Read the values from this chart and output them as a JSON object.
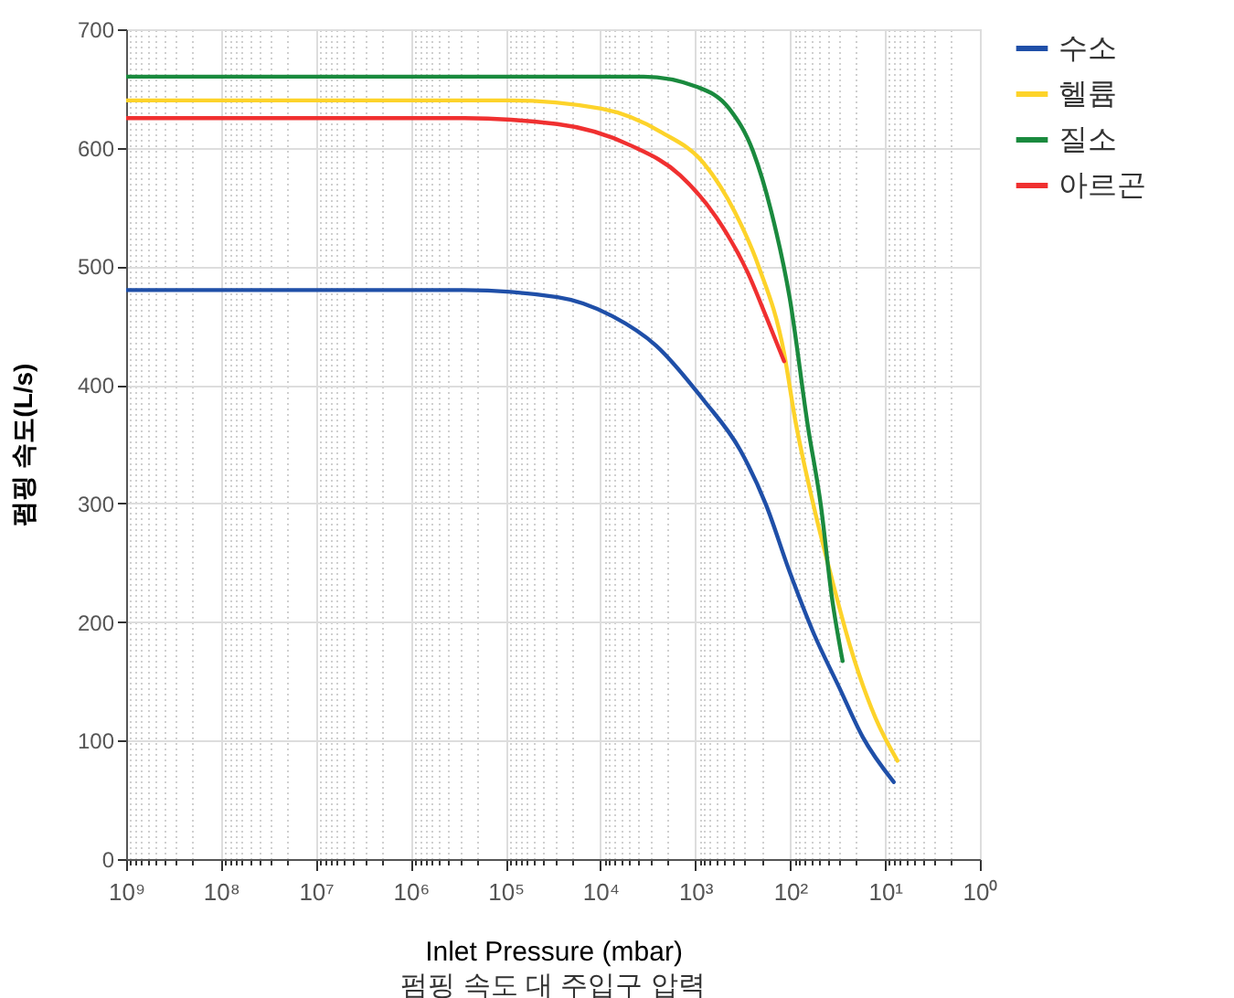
{
  "chart_data": {
    "type": "line",
    "title": "펌핑 속도 대 주입구 압력",
    "xlabel": "Inlet Pressure (mbar)",
    "ylabel": "펌핑 속도(L/s)",
    "log": "x",
    "grid": true,
    "legend": "top right",
    "marker": "none",
    "line_style": "solid",
    "xlim": [
      1000000000,
      1
    ],
    "ylim": [
      0,
      700
    ],
    "yticks": [
      0,
      100,
      200,
      300,
      400,
      500,
      600,
      700
    ],
    "xticks": [
      {
        "value": 1000000000,
        "label": "10⁹"
      },
      {
        "value": 100000000,
        "label": "10⁸"
      },
      {
        "value": 10000000,
        "label": "10⁷"
      },
      {
        "value": 1000000,
        "label": "10⁶"
      },
      {
        "value": 100000,
        "label": "10⁵"
      },
      {
        "value": 10000,
        "label": "10⁴"
      },
      {
        "value": 1000,
        "label": "10³"
      },
      {
        "value": 100,
        "label": "10²"
      },
      {
        "value": 10,
        "label": "10¹"
      },
      {
        "value": 1,
        "label": "10⁰"
      },
      {
        "value": 900000000,
        "label": null
      },
      {
        "value": 800000000,
        "label": null
      },
      {
        "value": 700000000,
        "label": null
      },
      {
        "value": 600000000,
        "label": null
      },
      {
        "value": 500000000,
        "label": null
      },
      {
        "value": 400000000,
        "label": null
      },
      {
        "value": 300000000,
        "label": null
      },
      {
        "value": 200000000,
        "label": null
      },
      {
        "value": 90000000,
        "label": null
      },
      {
        "value": 80000000,
        "label": null
      },
      {
        "value": 70000000,
        "label": null
      },
      {
        "value": 60000000,
        "label": null
      },
      {
        "value": 50000000,
        "label": null
      },
      {
        "value": 40000000,
        "label": null
      },
      {
        "value": 30000000,
        "label": null
      },
      {
        "value": 20000000,
        "label": null
      },
      {
        "value": 9000000,
        "label": null
      },
      {
        "value": 8000000,
        "label": null
      },
      {
        "value": 7000000,
        "label": null
      },
      {
        "value": 6000000,
        "label": null
      },
      {
        "value": 5000000,
        "label": null
      },
      {
        "value": 4000000,
        "label": null
      },
      {
        "value": 3000000,
        "label": null
      },
      {
        "value": 2000000,
        "label": null
      },
      {
        "value": 900000,
        "label": null
      },
      {
        "value": 800000,
        "label": null
      },
      {
        "value": 700000,
        "label": null
      },
      {
        "value": 600000,
        "label": null
      },
      {
        "value": 500000,
        "label": null
      },
      {
        "value": 400000,
        "label": null
      },
      {
        "value": 300000,
        "label": null
      },
      {
        "value": 200000,
        "label": null
      },
      {
        "value": 90000,
        "label": null
      },
      {
        "value": 80000,
        "label": null
      },
      {
        "value": 70000,
        "label": null
      },
      {
        "value": 60000,
        "label": null
      },
      {
        "value": 50000,
        "label": null
      },
      {
        "value": 40000,
        "label": null
      },
      {
        "value": 30000,
        "label": null
      },
      {
        "value": 20000,
        "label": null
      },
      {
        "value": 9000,
        "label": null
      },
      {
        "value": 8000,
        "label": null
      },
      {
        "value": 7000,
        "label": null
      },
      {
        "value": 6000,
        "label": null
      },
      {
        "value": 5000,
        "label": null
      },
      {
        "value": 4000,
        "label": null
      },
      {
        "value": 3000,
        "label": null
      },
      {
        "value": 2000,
        "label": null
      },
      {
        "value": 900,
        "label": null
      },
      {
        "value": 800,
        "label": null
      },
      {
        "value": 700,
        "label": null
      },
      {
        "value": 600,
        "label": null
      },
      {
        "value": 500,
        "label": null
      },
      {
        "value": 400,
        "label": null
      },
      {
        "value": 300,
        "label": null
      },
      {
        "value": 200,
        "label": null
      },
      {
        "value": 90,
        "label": null
      },
      {
        "value": 80,
        "label": null
      },
      {
        "value": 70,
        "label": null
      },
      {
        "value": 60,
        "label": null
      },
      {
        "value": 50,
        "label": null
      },
      {
        "value": 40,
        "label": null
      },
      {
        "value": 30,
        "label": null
      },
      {
        "value": 20,
        "label": null
      },
      {
        "value": 9,
        "label": null
      },
      {
        "value": 8,
        "label": null
      },
      {
        "value": 7,
        "label": null
      },
      {
        "value": 6,
        "label": null
      },
      {
        "value": 5,
        "label": null
      },
      {
        "value": 4,
        "label": null
      },
      {
        "value": 3,
        "label": null
      },
      {
        "value": 2,
        "label": null
      }
    ],
    "series": [
      {
        "name": "수소",
        "color": "#1f4fa8",
        "x": [
          1000000000,
          298000,
          28400,
          7500,
          2580,
          815,
          336,
          180,
          101,
          56.9,
          30.5,
          17.2,
          8.1
        ],
        "values": [
          480,
          480,
          474,
          458,
          433,
          387,
          345,
          299,
          242,
          191,
          145,
          103,
          65
        ]
      },
      {
        "name": "헬륨",
        "color": "#fdd32a",
        "x": [
          1000000000,
          90000,
          9770,
          2265,
          815,
          384,
          215,
          116,
          88.7,
          56.9,
          36.5,
          23.4,
          12.6,
          7.4
        ],
        "values": [
          640,
          640,
          633,
          613,
          587,
          546,
          500,
          427,
          371,
          299,
          237,
          180,
          119,
          83
        ]
      },
      {
        "name": "질소",
        "color": "#1a8a3e",
        "x": [
          1000000000,
          100000,
          10000,
          3520,
          931,
          439,
          246,
          158,
          101,
          65,
          47.6,
          36.5,
          28
        ],
        "values": [
          660,
          660,
          660,
          660,
          651,
          633,
          597,
          546,
          473,
          365,
          299,
          222,
          167
        ]
      },
      {
        "name": "아르곤",
        "color": "#f03030",
        "x": [
          1000000000,
          298000,
          28400,
          4810,
          1452,
          597,
          281,
          180,
          116
        ],
        "values": [
          625,
          625,
          620,
          602,
          577,
          541,
          495,
          458,
          420
        ]
      }
    ]
  }
}
